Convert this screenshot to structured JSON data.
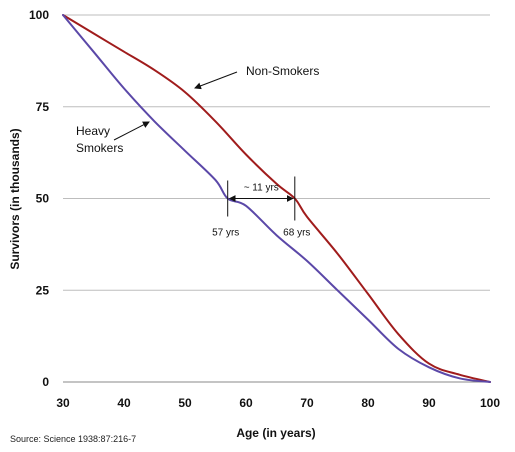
{
  "chart_data": {
    "type": "line",
    "xlabel": "Age (in years)",
    "ylabel": "Survivors (in thousands)",
    "xlim": [
      30,
      100
    ],
    "ylim": [
      0,
      100
    ],
    "x_ticks": [
      "30",
      "40",
      "50",
      "60",
      "70",
      "80",
      "90",
      "100"
    ],
    "y_ticks": [
      "0",
      "25",
      "50",
      "75",
      "100"
    ],
    "grid": "horizontal",
    "colors": {
      "non_smokers": "#a01c1c",
      "heavy_smokers": "#5b48a8",
      "grid": "#bdbdbd"
    },
    "series": [
      {
        "name": "Non-Smokers",
        "x": [
          30,
          35,
          40,
          45,
          50,
          55,
          60,
          65,
          68,
          70,
          75,
          80,
          85,
          90,
          95,
          100
        ],
        "y": [
          100,
          95,
          90,
          85,
          79,
          71,
          62,
          54,
          50,
          45,
          35,
          24,
          13,
          5,
          2,
          0
        ]
      },
      {
        "name": "Heavy Smokers",
        "x": [
          30,
          35,
          40,
          45,
          50,
          55,
          57,
          60,
          65,
          70,
          75,
          80,
          85,
          90,
          95,
          100
        ],
        "y": [
          100,
          90,
          80,
          71,
          63,
          55,
          50,
          48,
          40,
          33,
          25,
          17,
          9,
          4,
          1,
          0
        ]
      }
    ],
    "annotations": {
      "non_smokers_label": "Non-Smokers",
      "heavy_smokers_label_line1": "Heavy",
      "heavy_smokers_label_line2": "Smokers",
      "gap_label": "~ 11 yrs",
      "marker_left_label": "57 yrs",
      "marker_right_label": "68 yrs",
      "marker_left_x": 57,
      "marker_right_x": 68
    },
    "source": "Source: Science 1938:87:216-7"
  }
}
